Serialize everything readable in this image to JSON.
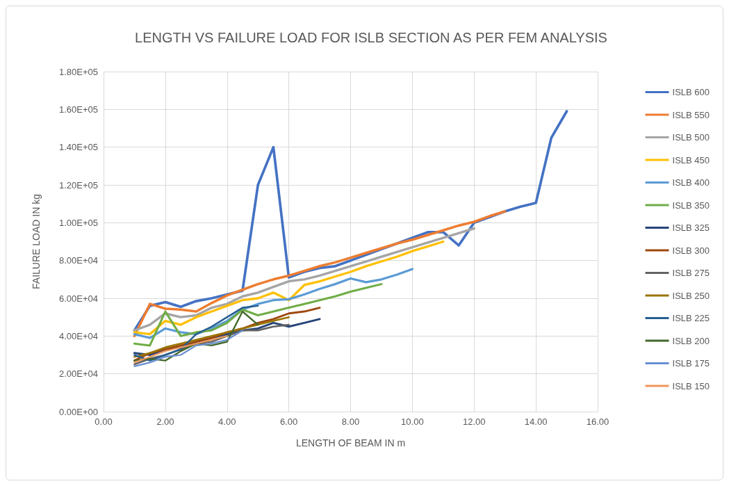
{
  "chart_data": {
    "type": "line",
    "title": "LENGTH VS FAILURE LOAD FOR ISLB SECTION AS PER FEM ANALYSIS",
    "xlabel": "LENGTH OF BEAM IN m",
    "ylabel": "FAILURE LOAD IN kg",
    "xlim": [
      0,
      16
    ],
    "xticks": [
      {
        "value": 0,
        "label": "0.00"
      },
      {
        "value": 2,
        "label": "2.00"
      },
      {
        "value": 4,
        "label": "4.00"
      },
      {
        "value": 6,
        "label": "6.00"
      },
      {
        "value": 8,
        "label": "8.00"
      },
      {
        "value": 10,
        "label": "10.00"
      },
      {
        "value": 12,
        "label": "12.00"
      },
      {
        "value": 14,
        "label": "14.00"
      },
      {
        "value": 16,
        "label": "16.00"
      }
    ],
    "ylim": [
      0,
      180000
    ],
    "yticks": [
      {
        "value": 0,
        "label": "0.00E+00"
      },
      {
        "value": 20000,
        "label": "2.00E+04"
      },
      {
        "value": 40000,
        "label": "4.00E+04"
      },
      {
        "value": 60000,
        "label": "6.00E+04"
      },
      {
        "value": 80000,
        "label": "8.00E+04"
      },
      {
        "value": 100000,
        "label": "1.00E+05"
      },
      {
        "value": 120000,
        "label": "1.20E+05"
      },
      {
        "value": 140000,
        "label": "1.40E+05"
      },
      {
        "value": 160000,
        "label": "1.60E+05"
      },
      {
        "value": 180000,
        "label": "1.80E+05"
      }
    ],
    "grid": true,
    "legend": "right",
    "marker": "none",
    "line_style": "solid",
    "series": [
      {
        "name": "ISLB 600",
        "color": "#4472c4",
        "x": [
          1,
          1.5,
          2,
          2.5,
          3,
          3.5,
          4,
          4.5,
          5,
          5.5,
          6,
          6.5,
          7,
          7.5,
          8,
          8.5,
          9,
          9.5,
          10,
          10.5,
          11,
          11.5,
          12,
          12.5,
          13,
          13.5,
          14,
          14.5,
          15
        ],
        "values": [
          43000,
          56000,
          58000,
          55500,
          58500,
          60000,
          62000,
          64000,
          120000,
          140000,
          71000,
          74000,
          76000,
          77000,
          80000,
          83000,
          86000,
          89000,
          92000,
          95000,
          95000,
          88000,
          100000,
          103000,
          106000,
          108500,
          110500,
          145000,
          159000
        ]
      },
      {
        "name": "ISLB 550",
        "color": "#ed7d31",
        "x": [
          1,
          1.5,
          2,
          2.5,
          3,
          3.5,
          4,
          4.5,
          5,
          5.5,
          6,
          6.5,
          7,
          7.5,
          8,
          8.5,
          9,
          9.5,
          10,
          10.5,
          11,
          11.5,
          12,
          12.5,
          13
        ],
        "values": [
          40000,
          57000,
          54500,
          54000,
          53000,
          57500,
          61500,
          64500,
          67500,
          70000,
          72000,
          74500,
          77000,
          79000,
          81500,
          84000,
          86500,
          89000,
          91000,
          93500,
          96000,
          98500,
          100500,
          103500,
          106000
        ]
      },
      {
        "name": "ISLB 500",
        "color": "#a5a5a5",
        "x": [
          1,
          1.5,
          2,
          2.5,
          3,
          3.5,
          4,
          4.5,
          5,
          5.5,
          6,
          6.5,
          7,
          7.5,
          8,
          8.5,
          9,
          9.5,
          10,
          10.5,
          11,
          11.5,
          12
        ],
        "values": [
          43000,
          46000,
          52000,
          50000,
          51000,
          55000,
          57000,
          61000,
          63000,
          66000,
          69000,
          70000,
          72000,
          74500,
          77000,
          79500,
          82000,
          84500,
          87000,
          89500,
          92000,
          94500,
          97000
        ]
      },
      {
        "name": "ISLB 450",
        "color": "#ffc000",
        "x": [
          1,
          1.5,
          2,
          2.5,
          3,
          3.5,
          4,
          4.5,
          5,
          5.5,
          6,
          6.5,
          7,
          7.5,
          8,
          8.5,
          9,
          9.5,
          10,
          10.5,
          11
        ],
        "values": [
          42000,
          41000,
          48000,
          46000,
          50000,
          53000,
          56000,
          59000,
          60000,
          63000,
          59000,
          67000,
          69000,
          71500,
          74000,
          77000,
          79500,
          82000,
          85000,
          87500,
          90000
        ]
      },
      {
        "name": "ISLB 400",
        "color": "#5b9bd5",
        "x": [
          1,
          1.5,
          2,
          2.5,
          3,
          3.5,
          4,
          4.5,
          5,
          5.5,
          6,
          6.5,
          7,
          7.5,
          8,
          8.5,
          9,
          9.5,
          10
        ],
        "values": [
          41000,
          39000,
          44000,
          42000,
          41000,
          44000,
          48000,
          54000,
          57000,
          59000,
          59500,
          62000,
          65000,
          67500,
          70500,
          68500,
          70000,
          72500,
          75500
        ]
      },
      {
        "name": "ISLB 350",
        "color": "#70ad47",
        "x": [
          1,
          1.5,
          2,
          2.5,
          3,
          3.5,
          4,
          4.5,
          5,
          5.5,
          6,
          6.5,
          7,
          7.5,
          8,
          8.5,
          9
        ],
        "values": [
          36000,
          35000,
          53000,
          40000,
          42000,
          43000,
          47000,
          54000,
          51000,
          53000,
          55000,
          57000,
          59000,
          61000,
          63500,
          65500,
          67500
        ]
      },
      {
        "name": "ISLB 325",
        "color": "#264478",
        "x": [
          1,
          1.5,
          2,
          2.5,
          3,
          3.5,
          4,
          4.5,
          5,
          5.5,
          6,
          6.5,
          7
        ],
        "values": [
          31000,
          30000,
          33000,
          34000,
          37000,
          39000,
          41000,
          43000,
          44000,
          47000,
          45000,
          47000,
          49000
        ]
      },
      {
        "name": "ISLB 300",
        "color": "#9e480e",
        "x": [
          1,
          1.5,
          2,
          2.5,
          3,
          3.5,
          4,
          4.5,
          5,
          5.5,
          6,
          6.5,
          7
        ],
        "values": [
          27000,
          31000,
          33000,
          35000,
          37000,
          39000,
          42000,
          44000,
          47000,
          49000,
          52000,
          53000,
          55000
        ]
      },
      {
        "name": "ISLB 275",
        "color": "#636363",
        "x": [
          1,
          1.5,
          2,
          2.5,
          3,
          3.5,
          4,
          4.5,
          5,
          5.5,
          6
        ],
        "values": [
          25000,
          28000,
          30000,
          33000,
          36000,
          37000,
          40000,
          43000,
          43000,
          45000,
          46000
        ]
      },
      {
        "name": "ISLB 250",
        "color": "#997300",
        "x": [
          1,
          1.5,
          2,
          2.5,
          3,
          3.5,
          4,
          4.5,
          5,
          5.5,
          6
        ],
        "values": [
          29000,
          31000,
          34000,
          36000,
          38000,
          40000,
          42000,
          44000,
          46000,
          48000,
          50000
        ]
      },
      {
        "name": "ISLB 225",
        "color": "#255e91",
        "x": [
          1,
          1.5,
          2,
          2.5,
          3,
          3.5,
          4,
          4.5,
          5
        ],
        "values": [
          30000,
          27000,
          30000,
          33000,
          41000,
          45000,
          50000,
          55000,
          56000
        ]
      },
      {
        "name": "ISLB 200",
        "color": "#43682b",
        "x": [
          1,
          1.5,
          2,
          2.5,
          3,
          3.5,
          4,
          4.5,
          5
        ],
        "values": [
          27000,
          28000,
          27000,
          32000,
          36000,
          35000,
          37000,
          53000,
          46000
        ]
      },
      {
        "name": "ISLB 175",
        "color": "#698ed0",
        "x": [
          1,
          1.5,
          2,
          2.5,
          3,
          3.5,
          4,
          4.5
        ],
        "values": [
          24000,
          26000,
          29000,
          30000,
          35000,
          36000,
          38000,
          43000
        ]
      },
      {
        "name": "ISLB 150",
        "color": "#f1975a",
        "x": [
          1,
          1.5,
          2,
          2.5,
          3,
          3.5,
          4
        ],
        "values": [
          26000,
          29000,
          32000,
          34000,
          36000,
          38000,
          40000
        ]
      }
    ]
  }
}
